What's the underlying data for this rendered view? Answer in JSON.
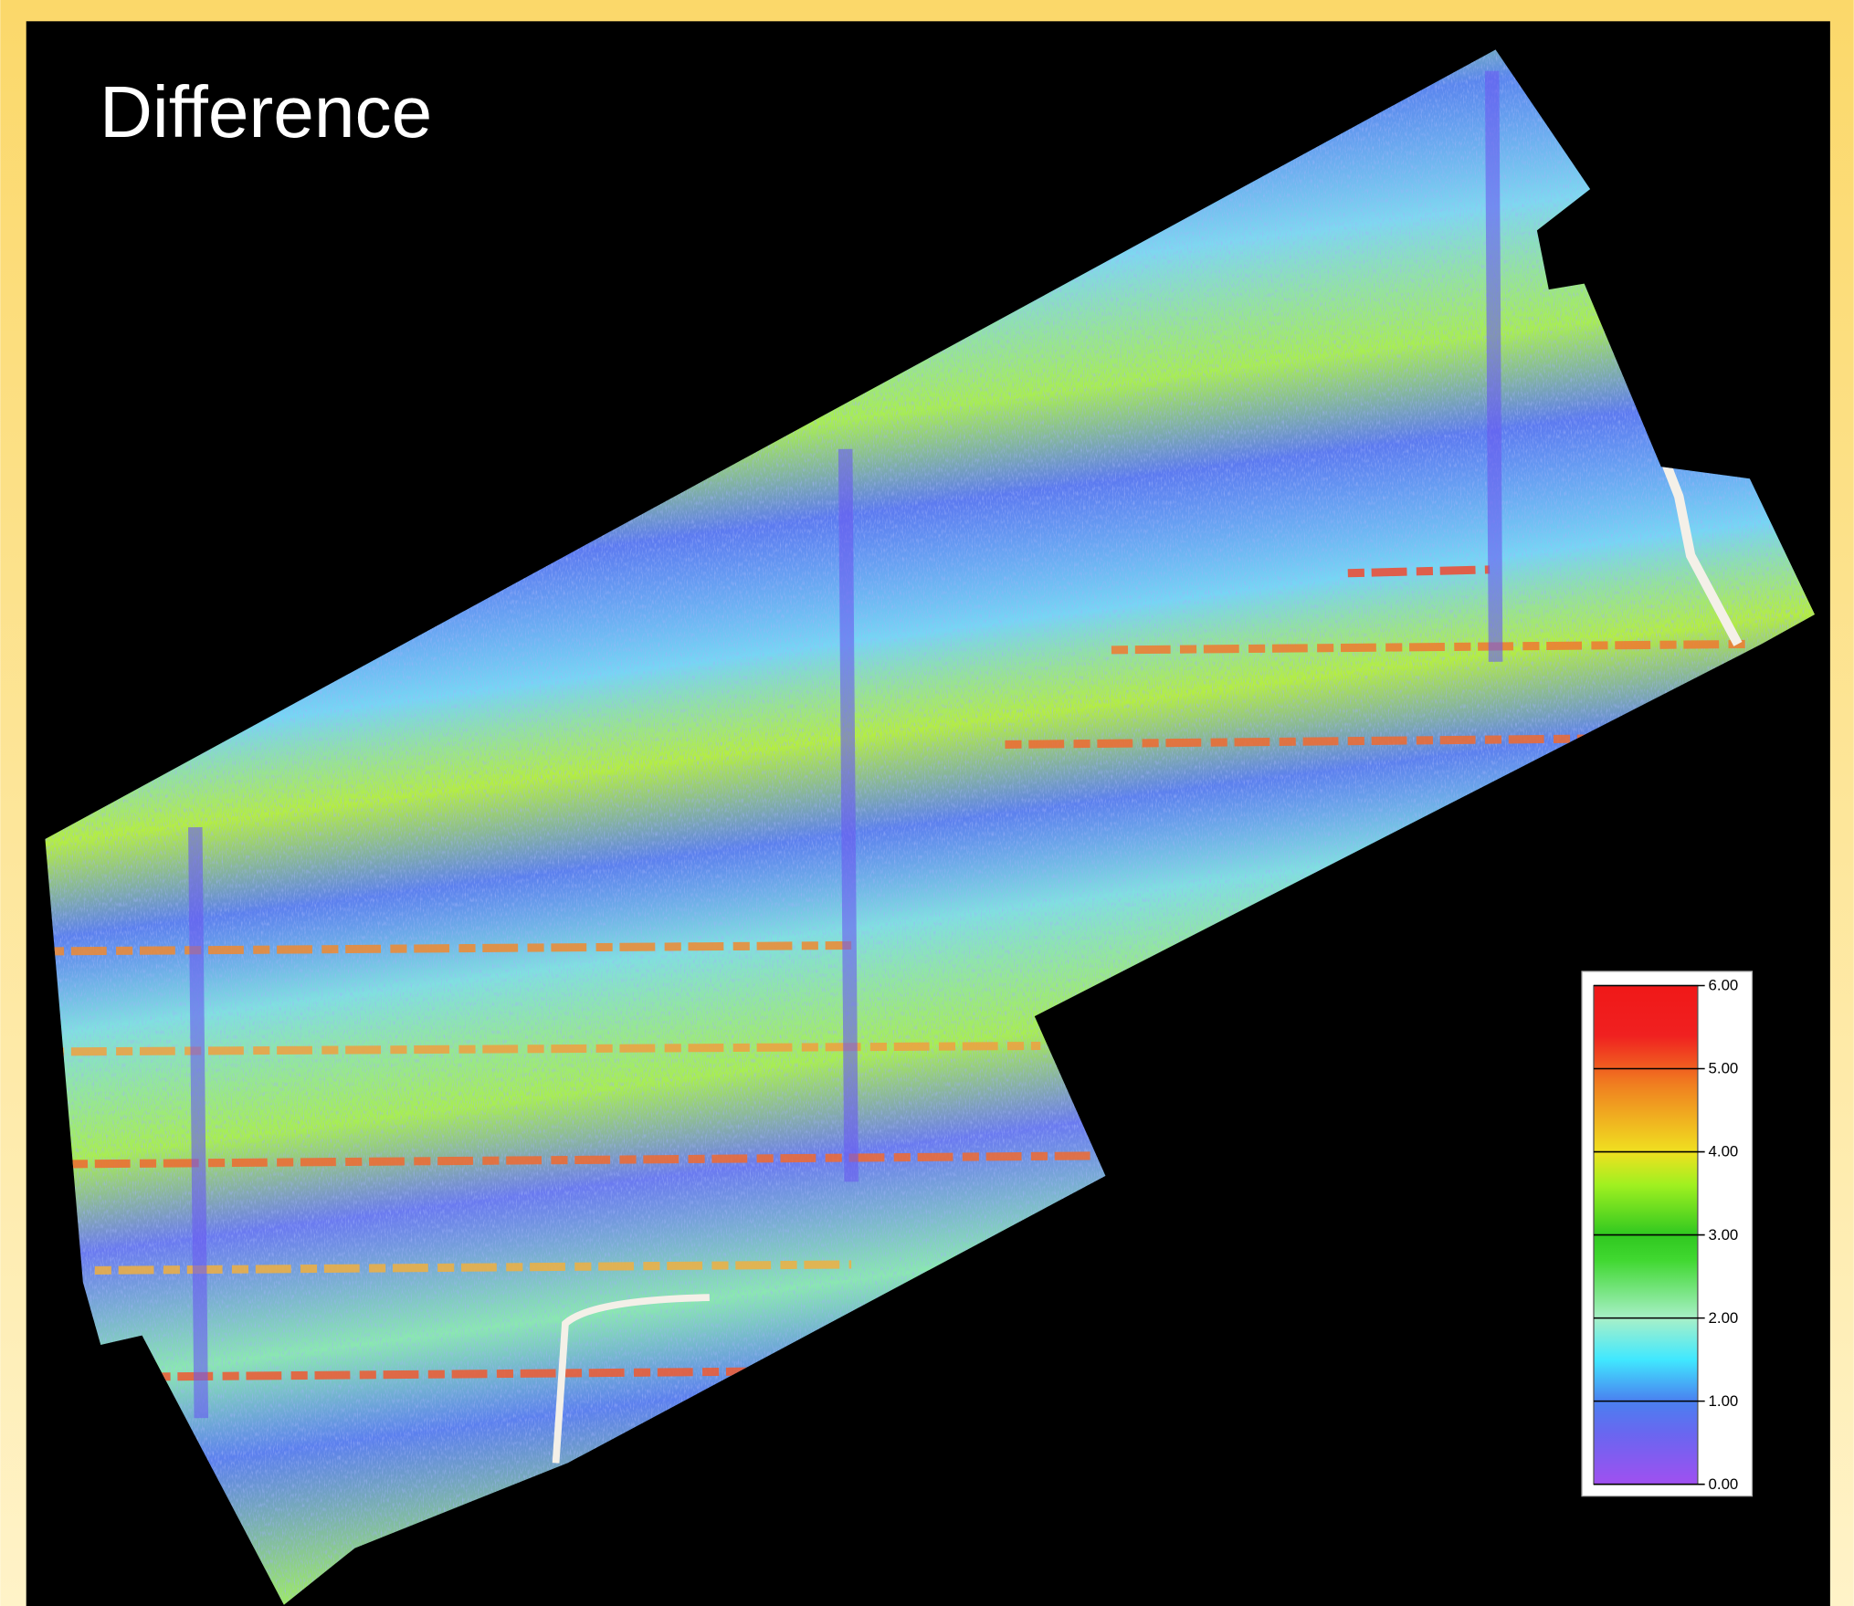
{
  "title": "Difference",
  "legend": {
    "ticks": [
      {
        "value": 6,
        "label": "6.00"
      },
      {
        "value": 5,
        "label": "5.00"
      },
      {
        "value": 4,
        "label": "4.00"
      },
      {
        "value": 3,
        "label": "3.00"
      },
      {
        "value": 2,
        "label": "2.00"
      },
      {
        "value": 1,
        "label": "1.00"
      },
      {
        "value": 0,
        "label": "0.00"
      }
    ]
  }
}
